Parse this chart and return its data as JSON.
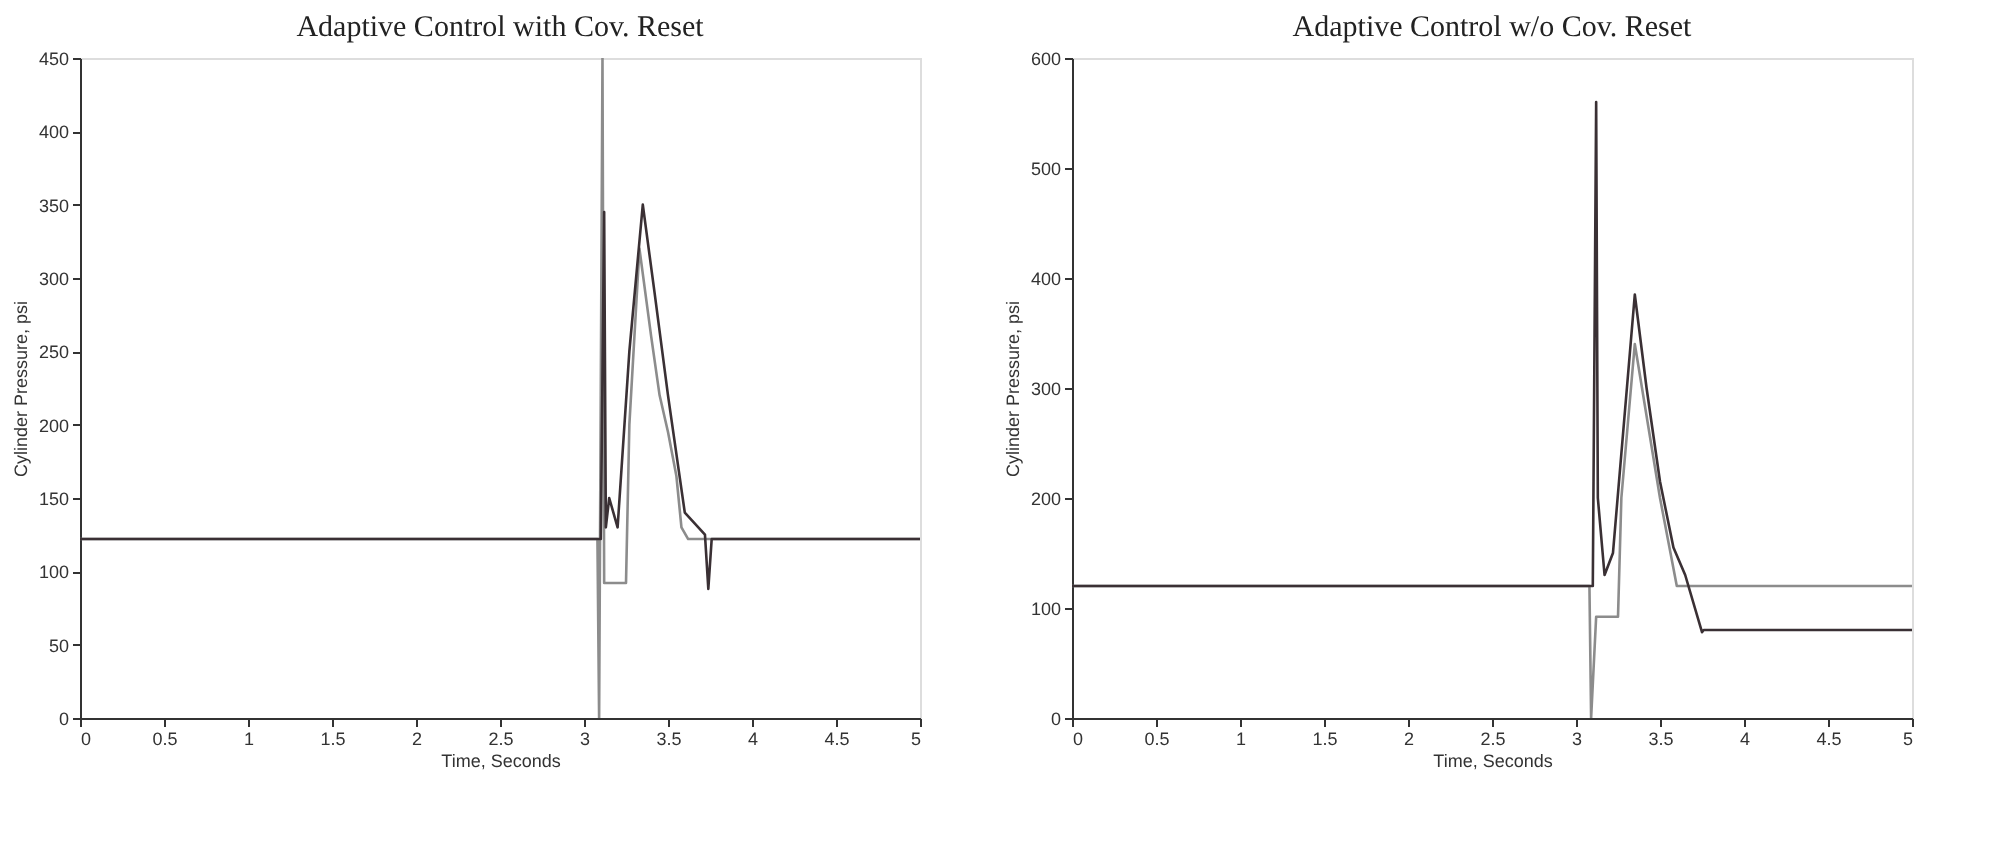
{
  "chart_data": [
    {
      "type": "line",
      "title": "Adaptive Control with Cov. Reset",
      "xlabel": "Time, Seconds",
      "ylabel": "Cylinder Pressure, psi",
      "xlim": [
        0,
        5
      ],
      "ylim": [
        0,
        450
      ],
      "xticks": [
        0,
        0.5,
        1,
        1.5,
        2,
        2.5,
        3,
        3.5,
        4,
        4.5,
        5
      ],
      "yticks": [
        0,
        50,
        100,
        150,
        200,
        250,
        300,
        350,
        400,
        450
      ],
      "grid": false,
      "legend": false,
      "marker": "none",
      "line_style": "solid",
      "series": [
        {
          "color": "#8c8c8c",
          "x": [
            0,
            3.08,
            3.09,
            3.11,
            3.12,
            3.25,
            3.27,
            3.33,
            3.4,
            3.45,
            3.5,
            3.55,
            3.58,
            3.62,
            5
          ],
          "values": [
            122,
            122,
            0,
            450,
            92,
            92,
            200,
            320,
            260,
            220,
            195,
            165,
            130,
            122,
            122
          ]
        },
        {
          "color": "#3a3034",
          "x": [
            0,
            3.1,
            3.12,
            3.13,
            3.15,
            3.2,
            3.27,
            3.35,
            3.42,
            3.5,
            3.6,
            3.72,
            3.74,
            3.76,
            5
          ],
          "values": [
            122,
            122,
            345,
            130,
            150,
            130,
            250,
            350,
            290,
            220,
            140,
            125,
            88,
            122,
            122
          ]
        }
      ]
    },
    {
      "type": "line",
      "title": "Adaptive Control w/o Cov. Reset",
      "xlabel": "Time, Seconds",
      "ylabel": "Cylinder Pressure, psi",
      "xlim": [
        0,
        5
      ],
      "ylim": [
        0,
        600
      ],
      "xticks": [
        0,
        0.5,
        1,
        1.5,
        2,
        2.5,
        3,
        3.5,
        4,
        4.5,
        5
      ],
      "yticks": [
        0,
        100,
        200,
        300,
        400,
        500,
        600
      ],
      "grid": false,
      "legend": false,
      "marker": "none",
      "line_style": "solid",
      "series": [
        {
          "color": "#8c8c8c",
          "x": [
            0,
            3.08,
            3.09,
            3.12,
            3.25,
            3.27,
            3.35,
            3.5,
            3.6,
            3.75,
            5
          ],
          "values": [
            120,
            120,
            0,
            92,
            92,
            200,
            340,
            200,
            120,
            120,
            120
          ]
        },
        {
          "color": "#3a3034",
          "x": [
            0,
            3.1,
            3.12,
            3.13,
            3.17,
            3.22,
            3.35,
            3.42,
            3.5,
            3.58,
            3.65,
            3.75,
            3.76,
            5
          ],
          "values": [
            120,
            120,
            560,
            200,
            130,
            150,
            385,
            300,
            215,
            155,
            130,
            78,
            80,
            80
          ]
        }
      ]
    }
  ]
}
